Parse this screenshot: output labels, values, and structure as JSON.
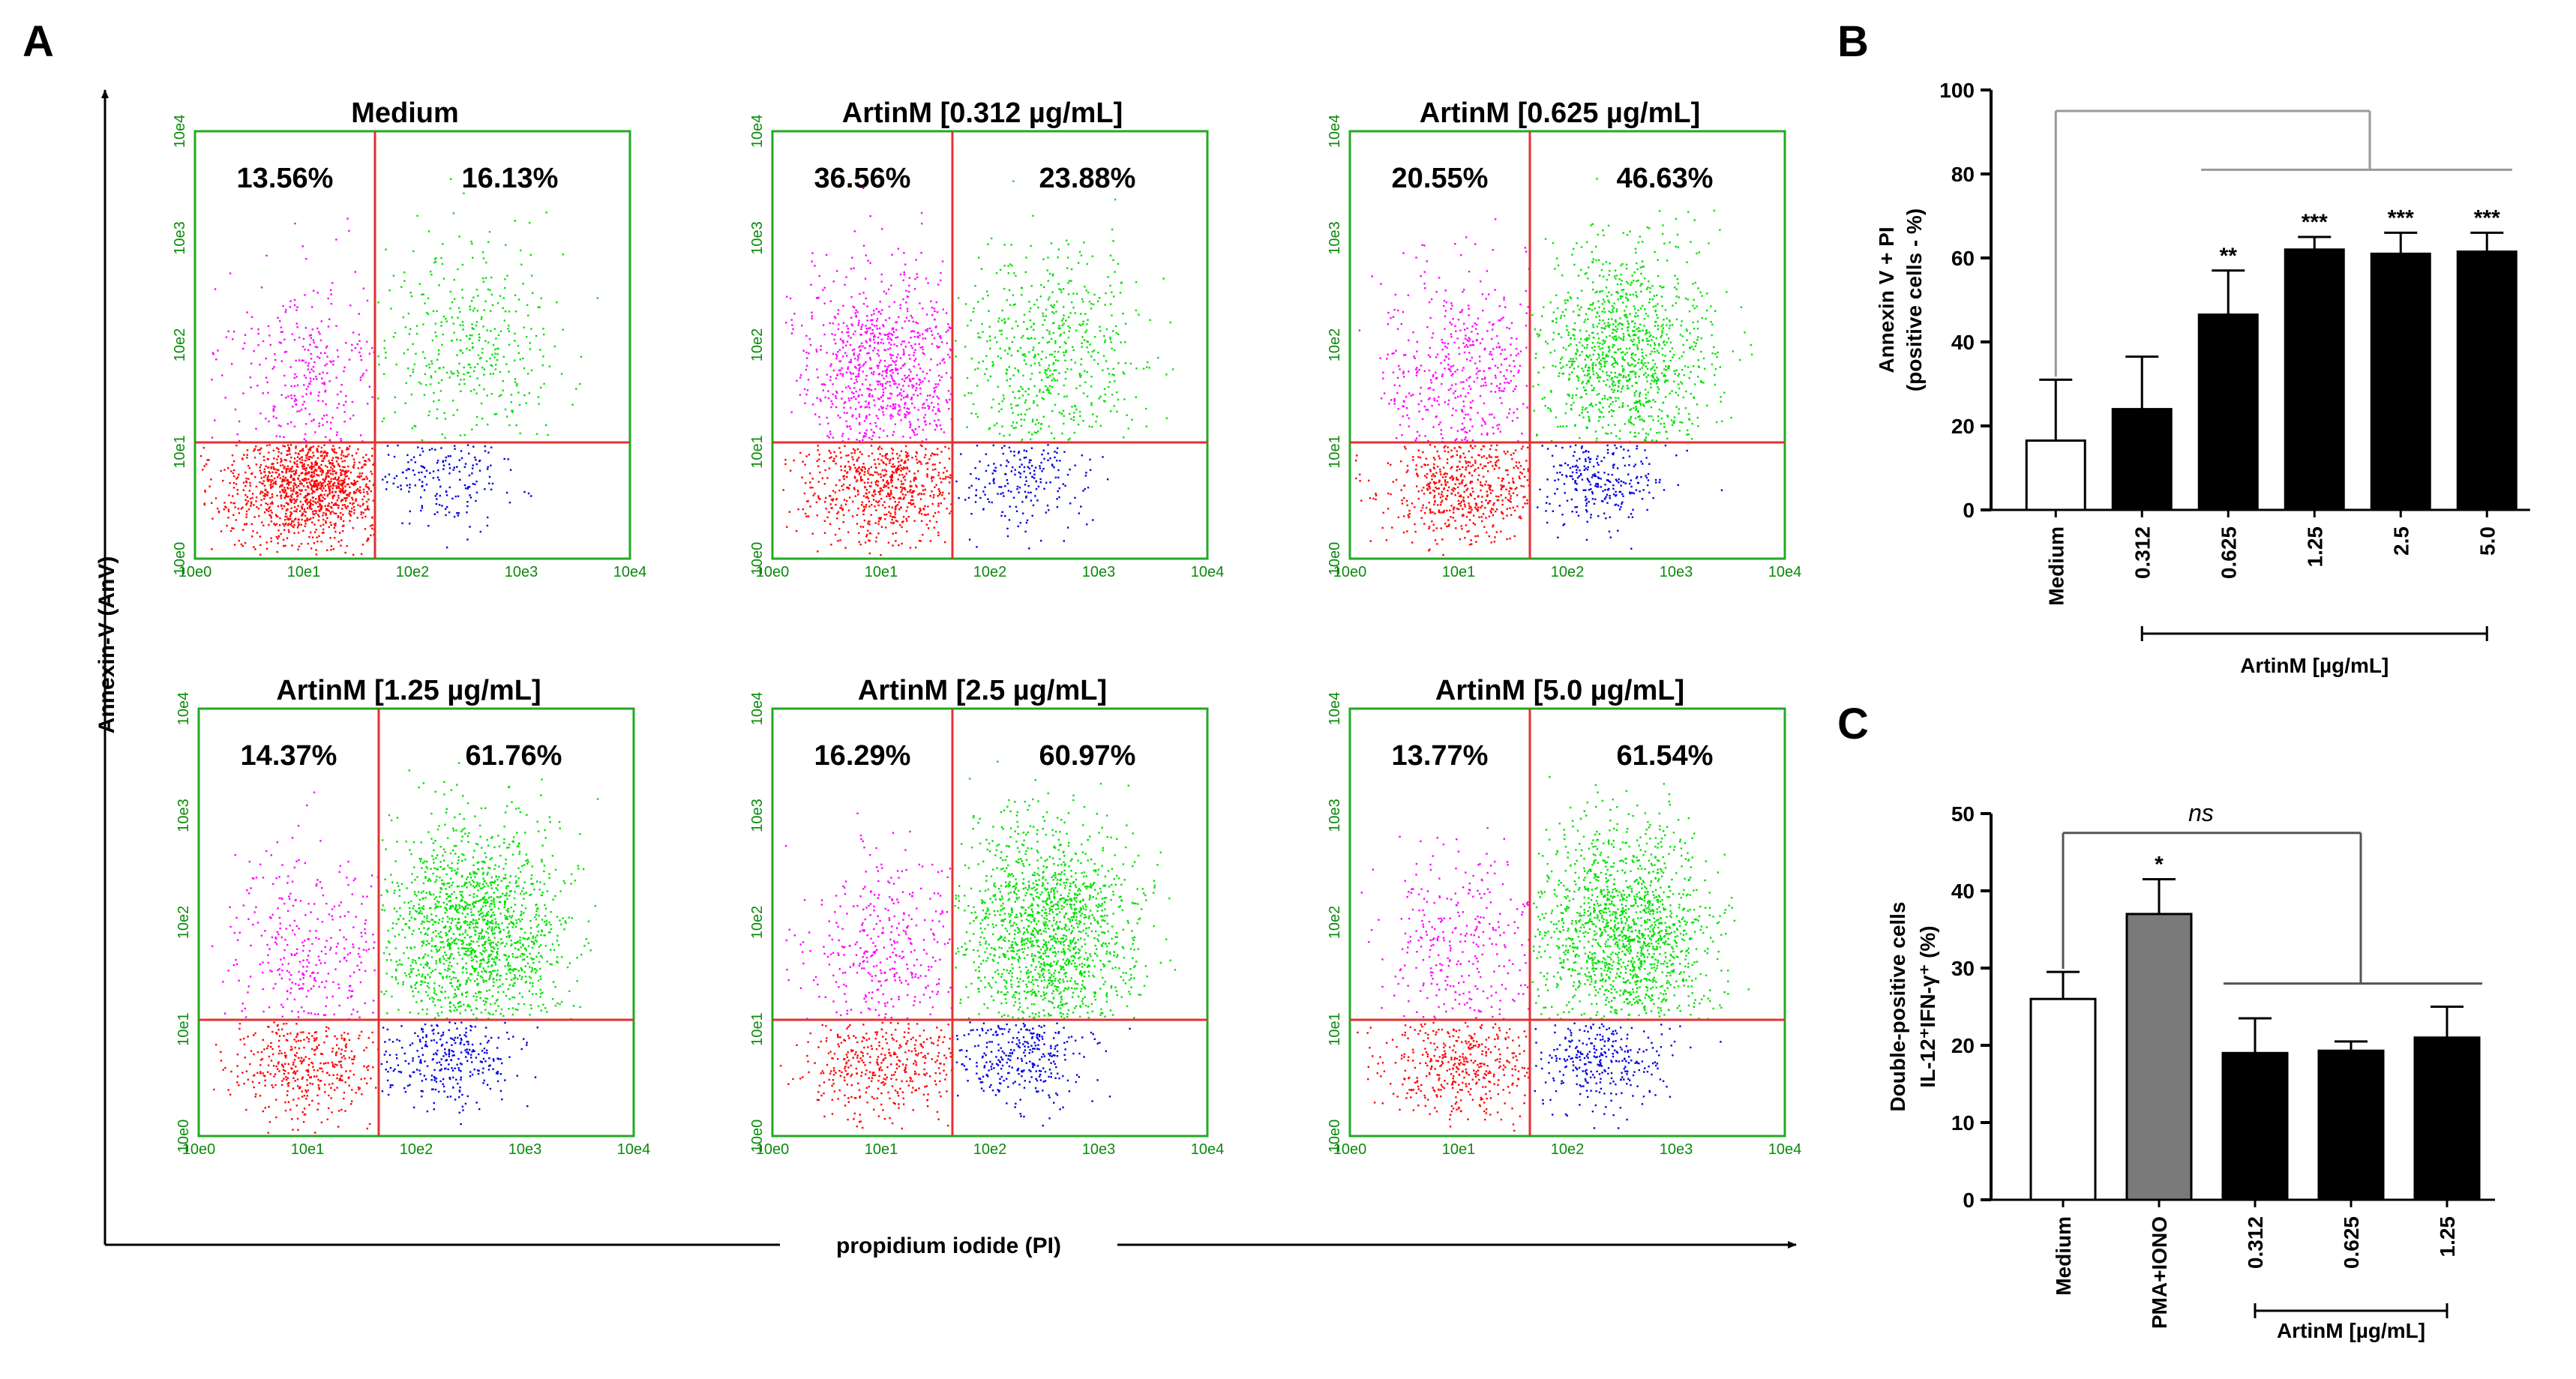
{
  "panel_labels": {
    "A": "A",
    "B": "B",
    "C": "C"
  },
  "colors": {
    "frame": "#22aa22",
    "quadrant_line": "#e53030",
    "ll": "#ff0000",
    "ul": "#ff00ff",
    "ur": "#00e000",
    "lr": "#0000dd",
    "tick_text": "#0a8a0a"
  },
  "flow": {
    "y_axis_label": "Annexin-V (AnV)",
    "x_axis_label": "propidium iodide (PI)",
    "ticks": [
      "10e0",
      "10e1",
      "10e2",
      "10e3",
      "10e4"
    ],
    "panels": [
      {
        "title": "Medium",
        "ul": "13.56%",
        "ur": "16.13%"
      },
      {
        "title": "ArtinM [0.312 µg/mL]",
        "ul": "36.56%",
        "ur": "23.88%"
      },
      {
        "title": "ArtinM [0.625 µg/mL]",
        "ul": "20.55%",
        "ur": "46.63%"
      },
      {
        "title": "ArtinM [1.25 µg/mL]",
        "ul": "14.37%",
        "ur": "61.76%"
      },
      {
        "title": "ArtinM [2.5 µg/mL]",
        "ul": "16.29%",
        "ur": "60.97%"
      },
      {
        "title": "ArtinM [5.0 µg/mL]",
        "ul": "13.77%",
        "ur": "61.54%"
      }
    ]
  },
  "chart_data": [
    {
      "id": "B",
      "type": "bar",
      "ylabel_line1": "Annexin V + PI",
      "ylabel_line2": "(positive cells - %)",
      "ylim": [
        0,
        100
      ],
      "yticks": [
        "0",
        "20",
        "40",
        "60",
        "80",
        "100"
      ],
      "categories": [
        "Medium",
        "0.312",
        "0.625",
        "1.25",
        "2.5",
        "5.0"
      ],
      "values": [
        16.5,
        24,
        46.5,
        62,
        61,
        61.5
      ],
      "errors": [
        14.5,
        12.5,
        10.5,
        3,
        5,
        4.5
      ],
      "fills": [
        "#ffffff",
        "#000000",
        "#000000",
        "#000000",
        "#000000",
        "#000000"
      ],
      "significance": [
        "",
        "",
        "**",
        "***",
        "***",
        "***"
      ],
      "group_label": "ArtinM [µg/mL]"
    },
    {
      "id": "C",
      "type": "bar",
      "ylabel_line1": "Double-positive cells",
      "ylabel_line2": "IL-12⁺IFN-γ⁺ (%)",
      "ylim": [
        0,
        50
      ],
      "yticks": [
        "0",
        "10",
        "20",
        "30",
        "40",
        "50"
      ],
      "categories": [
        "Medium",
        "PMA+IONO",
        "0.312",
        "0.625",
        "1.25"
      ],
      "values": [
        26,
        37,
        19,
        19.3,
        21
      ],
      "errors": [
        3.5,
        4.5,
        4.5,
        1.2,
        4
      ],
      "fills": [
        "#ffffff",
        "#7a7a7a",
        "#000000",
        "#000000",
        "#000000"
      ],
      "significance": [
        "",
        "*",
        "",
        "",
        ""
      ],
      "group_label": "ArtinM [µg/mL]",
      "annotation": "ns"
    }
  ]
}
